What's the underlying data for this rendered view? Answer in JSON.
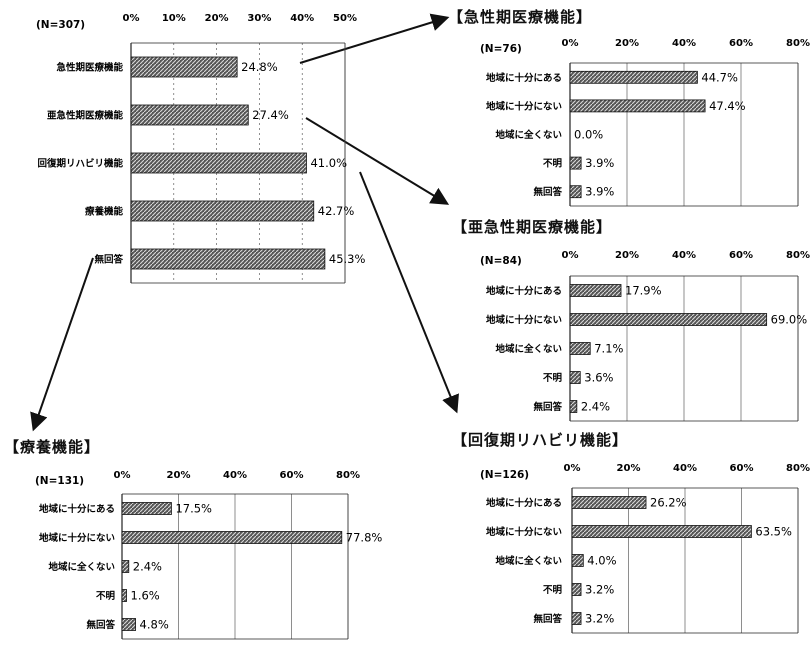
{
  "chart_data": [
    {
      "id": "main",
      "type": "bar",
      "orientation": "horizontal",
      "n_label": "(N=307)",
      "categories": [
        "急性期医療機能",
        "亜急性期医療機能",
        "回復期リハビリ機能",
        "療養機能",
        "無回答"
      ],
      "values": [
        24.8,
        27.4,
        41.0,
        42.7,
        45.3
      ],
      "value_labels": [
        "24.8%",
        "27.4%",
        "41.0%",
        "42.7%",
        "45.3%"
      ],
      "xlim": [
        0,
        50
      ],
      "ticks": [
        "0%",
        "10%",
        "20%",
        "30%",
        "40%",
        "50%"
      ],
      "grid": true
    },
    {
      "id": "acute",
      "type": "bar",
      "orientation": "horizontal",
      "title": "【急性期医療機能】",
      "n_label": "(N=76)",
      "categories": [
        "地域に十分にある",
        "地域に十分にない",
        "地域に全くない",
        "不明",
        "無回答"
      ],
      "values": [
        44.7,
        47.4,
        0.0,
        3.9,
        3.9
      ],
      "value_labels": [
        "44.7%",
        "47.4%",
        "0.0%",
        "3.9%",
        "3.9%"
      ],
      "xlim": [
        0,
        80
      ],
      "ticks": [
        "0%",
        "20%",
        "40%",
        "60%",
        "80%"
      ],
      "grid": true
    },
    {
      "id": "subacute",
      "type": "bar",
      "orientation": "horizontal",
      "title": "【亜急性期医療機能】",
      "n_label": "(N=84)",
      "categories": [
        "地域に十分にある",
        "地域に十分にない",
        "地域に全くない",
        "不明",
        "無回答"
      ],
      "values": [
        17.9,
        69.0,
        7.1,
        3.6,
        2.4
      ],
      "value_labels": [
        "17.9%",
        "69.0%",
        "7.1%",
        "3.6%",
        "2.4%"
      ],
      "xlim": [
        0,
        80
      ],
      "ticks": [
        "0%",
        "20%",
        "40%",
        "60%",
        "80%"
      ],
      "grid": true
    },
    {
      "id": "recovery",
      "type": "bar",
      "orientation": "horizontal",
      "title": "【回復期リハビリ機能】",
      "n_label": "(N=126)",
      "categories": [
        "地域に十分にある",
        "地域に十分にない",
        "地域に全くない",
        "不明",
        "無回答"
      ],
      "values": [
        26.2,
        63.5,
        4.0,
        3.2,
        3.2
      ],
      "value_labels": [
        "26.2%",
        "63.5%",
        "4.0%",
        "3.2%",
        "3.2%"
      ],
      "xlim": [
        0,
        80
      ],
      "ticks": [
        "0%",
        "20%",
        "40%",
        "60%",
        "80%"
      ],
      "grid": true
    },
    {
      "id": "ltc",
      "type": "bar",
      "orientation": "horizontal",
      "title": "【療養機能】",
      "n_label": "(N=131)",
      "categories": [
        "地域に十分にある",
        "地域に十分にない",
        "地域に全くない",
        "不明",
        "無回答"
      ],
      "values": [
        17.5,
        77.8,
        2.4,
        1.6,
        4.8
      ],
      "value_labels": [
        "17.5%",
        "77.8%",
        "2.4%",
        "1.6%",
        "4.8%"
      ],
      "xlim": [
        0,
        80
      ],
      "ticks": [
        "0%",
        "20%",
        "40%",
        "60%",
        "80%"
      ],
      "grid": true
    }
  ],
  "colors": {
    "bar_fill": "#555555",
    "bar_stripe": "#d8d8d8",
    "axis": "#222222",
    "grid": "#444444",
    "arrow": "#111111"
  }
}
